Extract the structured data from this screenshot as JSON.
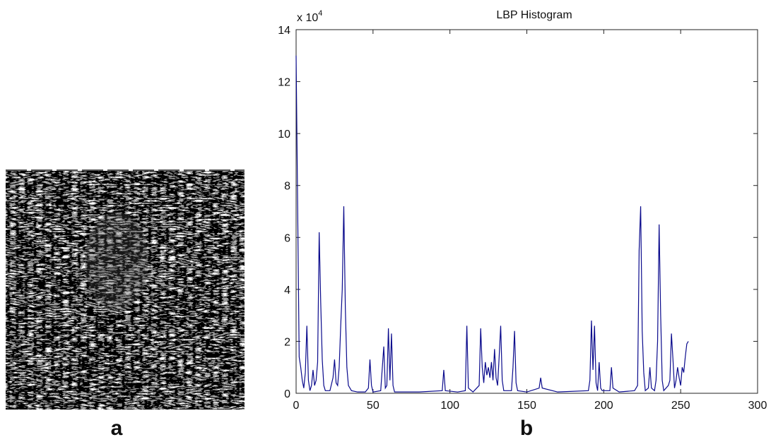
{
  "chart_data": {
    "type": "line",
    "title": "LBP Histogram",
    "y_multiplier": {
      "base": "x 10",
      "exponent": "4"
    },
    "panel_labels": [
      "a",
      "b"
    ],
    "x": [
      0,
      1,
      2,
      3,
      4,
      5,
      6,
      7,
      8,
      9,
      10,
      11,
      12,
      13,
      14,
      15,
      16,
      17,
      18,
      19,
      20,
      22,
      24,
      25,
      26,
      27,
      28,
      29,
      30,
      31,
      32,
      33,
      34,
      36,
      40,
      45,
      47,
      48,
      49,
      50,
      55,
      57,
      58,
      59,
      60,
      61,
      62,
      63,
      64,
      70,
      80,
      95,
      96,
      97,
      105,
      110,
      111,
      112,
      115,
      119,
      120,
      121,
      122,
      123,
      124,
      125,
      126,
      127,
      128,
      129,
      130,
      131,
      132,
      133,
      134,
      135,
      140,
      141,
      142,
      143,
      144,
      150,
      158,
      159,
      160,
      170,
      190,
      191,
      192,
      193,
      194,
      195,
      196,
      197,
      198,
      199,
      204,
      205,
      206,
      210,
      220,
      222,
      223,
      224,
      225,
      226,
      227,
      229,
      230,
      231,
      233,
      234,
      235,
      236,
      237,
      238,
      239,
      242,
      243,
      244,
      245,
      246,
      247,
      248,
      249,
      250,
      251,
      252,
      253,
      254,
      255
    ],
    "series": [
      {
        "color": "#0a0a8c",
        "values": [
          13,
          7.2,
          1.4,
          1.0,
          0.5,
          0.2,
          0.8,
          2.6,
          0.5,
          0.1,
          0.3,
          0.9,
          0.3,
          0.5,
          1.2,
          6.2,
          3.5,
          1.3,
          0.3,
          0.1,
          0.1,
          0.1,
          0.6,
          1.3,
          0.4,
          0.3,
          1.0,
          2.6,
          4.0,
          7.2,
          3.3,
          1.0,
          0.3,
          0.1,
          0.05,
          0.05,
          0.2,
          1.3,
          0.3,
          0.05,
          0.1,
          1.8,
          0.2,
          0.3,
          2.5,
          0.5,
          2.3,
          0.3,
          0.05,
          0.05,
          0.05,
          0.1,
          0.9,
          0.1,
          0.05,
          0.1,
          2.6,
          0.2,
          0.05,
          0.3,
          2.5,
          1.0,
          0.4,
          1.2,
          0.7,
          1.0,
          0.6,
          1.2,
          0.5,
          1.7,
          0.6,
          0.3,
          1.4,
          2.6,
          0.5,
          0.1,
          0.1,
          1.0,
          2.4,
          0.4,
          0.1,
          0.05,
          0.2,
          0.6,
          0.2,
          0.05,
          0.1,
          0.5,
          2.8,
          0.9,
          2.6,
          0.4,
          0.1,
          1.2,
          0.2,
          0.1,
          0.1,
          1.0,
          0.2,
          0.05,
          0.1,
          0.3,
          5.5,
          7.2,
          2.4,
          0.8,
          0.1,
          0.2,
          1.0,
          0.2,
          0.1,
          0.5,
          2.0,
          6.5,
          3.0,
          0.5,
          0.1,
          0.3,
          0.5,
          2.3,
          1.3,
          0.2,
          0.5,
          1.0,
          0.6,
          0.3,
          1.0,
          0.8,
          1.4,
          1.9,
          2.0
        ]
      }
    ],
    "xlim": [
      0,
      300
    ],
    "xticks": [
      0,
      50,
      100,
      150,
      200,
      250,
      300
    ],
    "ylim": [
      0,
      14
    ],
    "yticks": [
      0,
      2,
      4,
      6,
      8,
      10,
      12,
      14
    ]
  }
}
